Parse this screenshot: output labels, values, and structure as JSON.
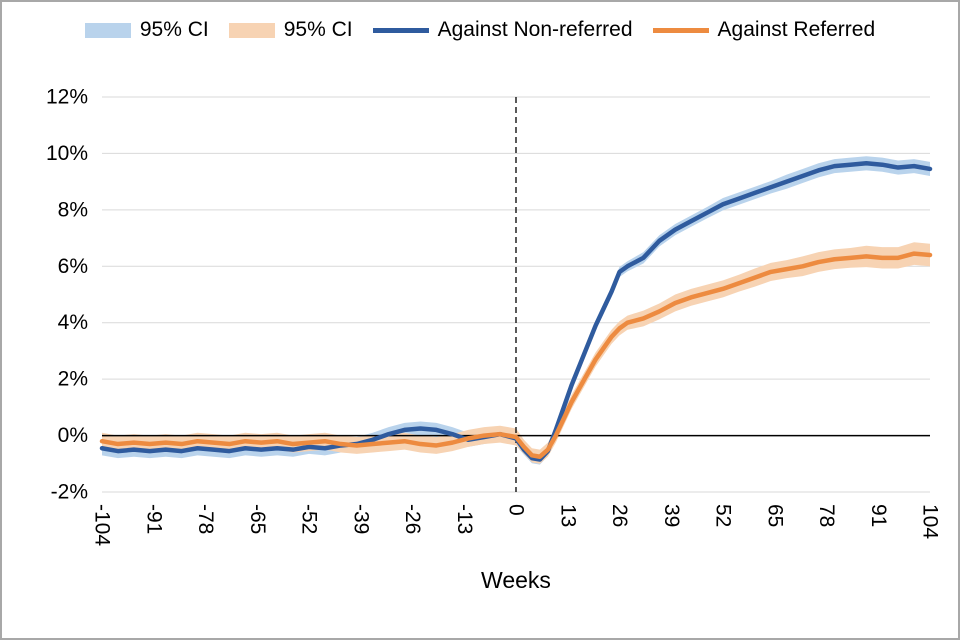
{
  "frame": {
    "border_color": "#a8a8a8",
    "background": "#ffffff"
  },
  "legend": [
    {
      "type": "band",
      "color": "#b9d3ec",
      "label": "95% CI"
    },
    {
      "type": "band",
      "color": "#f7d3b3",
      "label": "95% CI"
    },
    {
      "type": "line",
      "color": "#2f5b9e",
      "label": "Against Non-referred"
    },
    {
      "type": "line",
      "color": "#ed8b40",
      "label": "Against Referred"
    }
  ],
  "chart_data": {
    "type": "line",
    "title": "",
    "xlabel": "Weeks",
    "ylabel": "",
    "xlim": [
      -104,
      104
    ],
    "ylim": [
      -2,
      12
    ],
    "grid": "horizontal",
    "gridline_color": "#d9d9d9",
    "x_ticks": [
      -104,
      -91,
      -78,
      -65,
      -52,
      -39,
      -26,
      -13,
      0,
      13,
      26,
      39,
      52,
      65,
      78,
      91,
      104
    ],
    "y_ticks": [
      12,
      10,
      8,
      6,
      4,
      2,
      0,
      -2
    ],
    "y_tick_labels": [
      "12%",
      "10%",
      "8%",
      "6%",
      "4%",
      "2%",
      "0%",
      "-2%"
    ],
    "reference_lines": {
      "vertical_dashed_x": 0,
      "horizontal_solid_y": 0
    },
    "x": [
      -104,
      -100,
      -96,
      -92,
      -88,
      -84,
      -80,
      -76,
      -72,
      -68,
      -64,
      -60,
      -56,
      -52,
      -48,
      -44,
      -40,
      -36,
      -32,
      -28,
      -24,
      -20,
      -16,
      -12,
      -8,
      -4,
      0,
      2,
      4,
      6,
      8,
      10,
      12,
      14,
      16,
      18,
      20,
      22,
      24,
      26,
      28,
      32,
      36,
      40,
      44,
      48,
      52,
      56,
      60,
      64,
      68,
      72,
      76,
      80,
      84,
      88,
      92,
      96,
      100,
      104
    ],
    "series": [
      {
        "name": "Against Non-referred",
        "color": "#2f5b9e",
        "ci_color": "#b9d3ec",
        "values": [
          -0.45,
          -0.55,
          -0.5,
          -0.55,
          -0.5,
          -0.55,
          -0.45,
          -0.5,
          -0.55,
          -0.45,
          -0.5,
          -0.45,
          -0.5,
          -0.4,
          -0.45,
          -0.35,
          -0.3,
          -0.15,
          0.05,
          0.2,
          0.25,
          0.2,
          0.05,
          -0.15,
          -0.05,
          0.05,
          -0.1,
          -0.5,
          -0.8,
          -0.85,
          -0.55,
          0.2,
          1.0,
          1.8,
          2.5,
          3.2,
          3.9,
          4.5,
          5.1,
          5.8,
          6.0,
          6.3,
          6.9,
          7.3,
          7.6,
          7.9,
          8.2,
          8.4,
          8.6,
          8.8,
          9.0,
          9.2,
          9.4,
          9.55,
          9.6,
          9.65,
          9.6,
          9.5,
          9.55,
          9.45
        ],
        "ci_halfwidth": [
          0.25,
          0.25,
          0.25,
          0.25,
          0.25,
          0.25,
          0.25,
          0.25,
          0.25,
          0.25,
          0.25,
          0.25,
          0.25,
          0.25,
          0.25,
          0.25,
          0.25,
          0.25,
          0.25,
          0.25,
          0.25,
          0.25,
          0.25,
          0.25,
          0.25,
          0.25,
          0.25,
          0.18,
          0.18,
          0.18,
          0.18,
          0.18,
          0.18,
          0.18,
          0.18,
          0.18,
          0.18,
          0.18,
          0.18,
          0.18,
          0.18,
          0.2,
          0.2,
          0.2,
          0.2,
          0.2,
          0.22,
          0.22,
          0.22,
          0.22,
          0.25,
          0.25,
          0.25,
          0.25,
          0.25,
          0.25,
          0.25,
          0.25,
          0.25,
          0.25
        ]
      },
      {
        "name": "Against Referred",
        "color": "#ed8b40",
        "ci_color": "#f7d3b3",
        "values": [
          -0.2,
          -0.3,
          -0.25,
          -0.3,
          -0.25,
          -0.3,
          -0.2,
          -0.25,
          -0.3,
          -0.2,
          -0.25,
          -0.2,
          -0.3,
          -0.25,
          -0.2,
          -0.3,
          -0.35,
          -0.3,
          -0.25,
          -0.2,
          -0.3,
          -0.35,
          -0.25,
          -0.1,
          0.0,
          0.05,
          -0.05,
          -0.4,
          -0.7,
          -0.75,
          -0.5,
          0.0,
          0.6,
          1.2,
          1.7,
          2.2,
          2.7,
          3.1,
          3.5,
          3.8,
          4.0,
          4.15,
          4.4,
          4.7,
          4.9,
          5.05,
          5.2,
          5.4,
          5.6,
          5.8,
          5.9,
          6.0,
          6.15,
          6.25,
          6.3,
          6.35,
          6.3,
          6.3,
          6.45,
          6.4
        ],
        "ci_halfwidth": [
          0.3,
          0.3,
          0.3,
          0.3,
          0.3,
          0.3,
          0.3,
          0.3,
          0.3,
          0.3,
          0.3,
          0.3,
          0.3,
          0.3,
          0.3,
          0.3,
          0.3,
          0.3,
          0.3,
          0.3,
          0.3,
          0.3,
          0.3,
          0.3,
          0.3,
          0.3,
          0.3,
          0.25,
          0.25,
          0.25,
          0.25,
          0.25,
          0.25,
          0.25,
          0.25,
          0.25,
          0.25,
          0.25,
          0.25,
          0.25,
          0.25,
          0.28,
          0.28,
          0.3,
          0.3,
          0.3,
          0.3,
          0.3,
          0.32,
          0.32,
          0.32,
          0.35,
          0.35,
          0.35,
          0.35,
          0.38,
          0.38,
          0.38,
          0.4,
          0.4
        ]
      }
    ]
  }
}
